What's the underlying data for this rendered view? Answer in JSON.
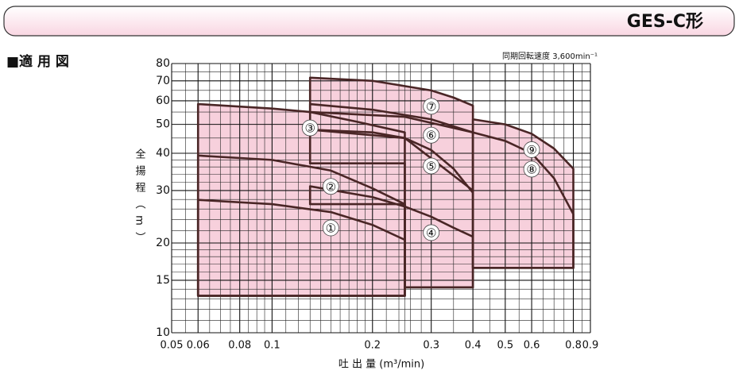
{
  "chart_data": {
    "type": "region",
    "title": "GES-C形",
    "section": "■適 用 図",
    "note": "同期回転速度 3,600min⁻¹",
    "xlabel": "吐 出 量 (m³/min)",
    "ylabel": "全揚程（m）",
    "log_x": true,
    "log_y": true,
    "grid": true,
    "color": "#f7d0dc",
    "line_color": "#4a2626",
    "xlim": [
      0.05,
      0.9
    ],
    "ylim": [
      10,
      80
    ],
    "xticks": [
      0.05,
      0.06,
      0.08,
      0.1,
      0.2,
      0.3,
      0.4,
      0.5,
      0.6,
      0.8,
      0.9
    ],
    "yticks": [
      10,
      15,
      20,
      30,
      40,
      50,
      60,
      70,
      80
    ],
    "x_minor_grid": [
      0.055,
      0.065,
      0.07,
      0.075,
      0.085,
      0.09,
      0.095,
      0.11,
      0.12,
      0.13,
      0.14,
      0.15,
      0.16,
      0.17,
      0.18,
      0.19,
      0.22,
      0.24,
      0.25,
      0.26,
      0.28,
      0.35,
      0.45,
      0.55,
      0.65,
      0.7,
      0.75,
      0.85
    ],
    "y_minor_grid": [
      11,
      12,
      13,
      14,
      16,
      17,
      18,
      19,
      22,
      24,
      26,
      28,
      32,
      34,
      36,
      38,
      45,
      55,
      65,
      75
    ],
    "series": [
      {
        "name": "①",
        "x": [
          0.06,
          0.06,
          0.1,
          0.15,
          0.2,
          0.25,
          0.25
        ],
        "values": [
          13.3,
          27.9,
          27,
          25.4,
          23,
          20.5,
          13.3
        ]
      },
      {
        "name": "②",
        "x": [
          0.06,
          0.06,
          0.1,
          0.15,
          0.2,
          0.25,
          0.25
        ],
        "values": [
          13.3,
          39.3,
          38,
          35,
          30.5,
          27,
          13.3
        ]
      },
      {
        "name": "③",
        "x": [
          0.06,
          0.06,
          0.1,
          0.13,
          0.18,
          0.25,
          0.25
        ],
        "values": [
          13.3,
          58.5,
          56.5,
          55,
          51,
          47,
          13.3
        ]
      },
      {
        "name": "④",
        "x": [
          0.13,
          0.13,
          0.2,
          0.25,
          0.3,
          0.35,
          0.4,
          0.4,
          0.25,
          0.25
        ],
        "values": [
          27,
          31,
          28.5,
          26.5,
          24.5,
          22.5,
          21,
          14.2,
          14.2,
          27
        ]
      },
      {
        "name": "⑤",
        "x": [
          0.13,
          0.13,
          0.2,
          0.25,
          0.3,
          0.35,
          0.4,
          0.4,
          0.25,
          0.25
        ],
        "values": [
          37,
          48,
          47,
          45,
          41,
          35.5,
          29.5,
          14.2,
          14.2,
          37
        ]
      },
      {
        "name": "⑥",
        "x": [
          0.13,
          0.13,
          0.2,
          0.3,
          0.4,
          0.4,
          0.25
        ],
        "values": [
          48,
          58.5,
          56,
          52,
          47,
          30,
          45
        ]
      },
      {
        "name": "⑦",
        "x": [
          0.13,
          0.13,
          0.2,
          0.3,
          0.35,
          0.4,
          0.4,
          0.25
        ],
        "values": [
          55,
          71.7,
          70,
          65,
          61.5,
          57.8,
          47,
          53
        ]
      },
      {
        "name": "⑧",
        "x": [
          0.4,
          0.4,
          0.5,
          0.6,
          0.7,
          0.8,
          0.8
        ],
        "values": [
          16.5,
          47,
          44,
          40,
          33,
          25,
          16.5
        ]
      },
      {
        "name": "⑨",
        "x": [
          0.4,
          0.4,
          0.5,
          0.6,
          0.7,
          0.8,
          0.8
        ],
        "values": [
          16.5,
          52,
          50,
          46.5,
          41.5,
          35.5,
          16.5
        ]
      }
    ]
  }
}
